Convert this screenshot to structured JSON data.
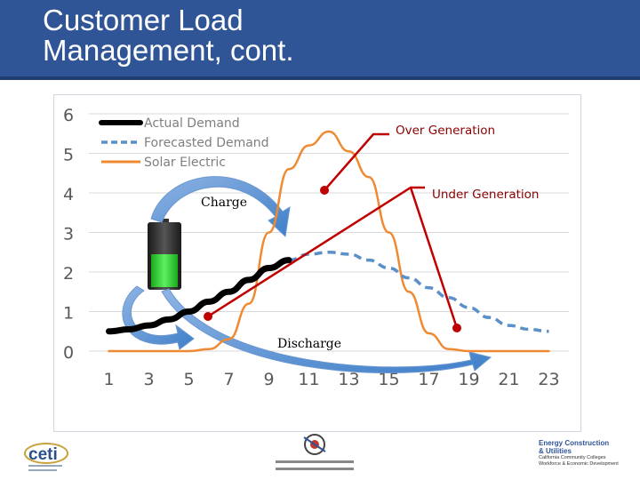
{
  "slide": {
    "title_line1": "Customer Load",
    "title_line2": "Management, cont."
  },
  "annotations": {
    "over_generation": "Over Generation",
    "under_generation": "Under Generation",
    "charge": "Charge",
    "discharge": "Discharge"
  },
  "colors": {
    "header": "#2f5597",
    "actual": "#000000",
    "forecast": "#5b8fc8",
    "solar": "#ef8a32",
    "callout": "#c00000",
    "battery_fill": "#33d633"
  },
  "footer": {
    "left_logo": "ceti",
    "right_logo_line1": "Energy Construction",
    "right_logo_line2": "& Utilities",
    "right_logo_line3": "California Community Colleges",
    "right_logo_line4": "Workforce & Economic Development"
  },
  "chart_data": {
    "type": "line",
    "title": "",
    "xlabel": "",
    "ylabel": "",
    "xlim": [
      0,
      24
    ],
    "ylim": [
      0,
      6
    ],
    "x_ticks": [
      "1",
      "3",
      "5",
      "7",
      "9",
      "11",
      "13",
      "15",
      "17",
      "19",
      "21",
      "23"
    ],
    "y_ticks": [
      "0",
      "1",
      "2",
      "3",
      "4",
      "5",
      "6"
    ],
    "grid": true,
    "legend_position": "top-left",
    "series": [
      {
        "name": "Actual Demand",
        "x": [
          1,
          2,
          3,
          4,
          5,
          6,
          7,
          8,
          9,
          10
        ],
        "y": [
          0.5,
          0.55,
          0.65,
          0.8,
          1.0,
          1.25,
          1.5,
          1.8,
          2.1,
          2.3
        ]
      },
      {
        "name": "Forecasted Demand",
        "x": [
          10,
          11,
          12,
          13,
          14,
          15,
          16,
          17,
          18,
          19,
          20,
          21,
          22,
          23
        ],
        "y": [
          2.3,
          2.45,
          2.5,
          2.45,
          2.3,
          2.1,
          1.85,
          1.6,
          1.35,
          1.1,
          0.85,
          0.65,
          0.55,
          0.5
        ]
      },
      {
        "name": "Solar Electric",
        "x": [
          1,
          2,
          3,
          4,
          5,
          6,
          7,
          8,
          9,
          10,
          11,
          12,
          13,
          14,
          15,
          16,
          17,
          18,
          19,
          20,
          21,
          22,
          23
        ],
        "y": [
          0,
          0,
          0,
          0,
          0,
          0.05,
          0.3,
          1.2,
          3.0,
          4.6,
          5.2,
          5.55,
          5.05,
          4.4,
          3.0,
          1.5,
          0.45,
          0.05,
          0,
          0,
          0,
          0,
          0
        ]
      }
    ]
  }
}
